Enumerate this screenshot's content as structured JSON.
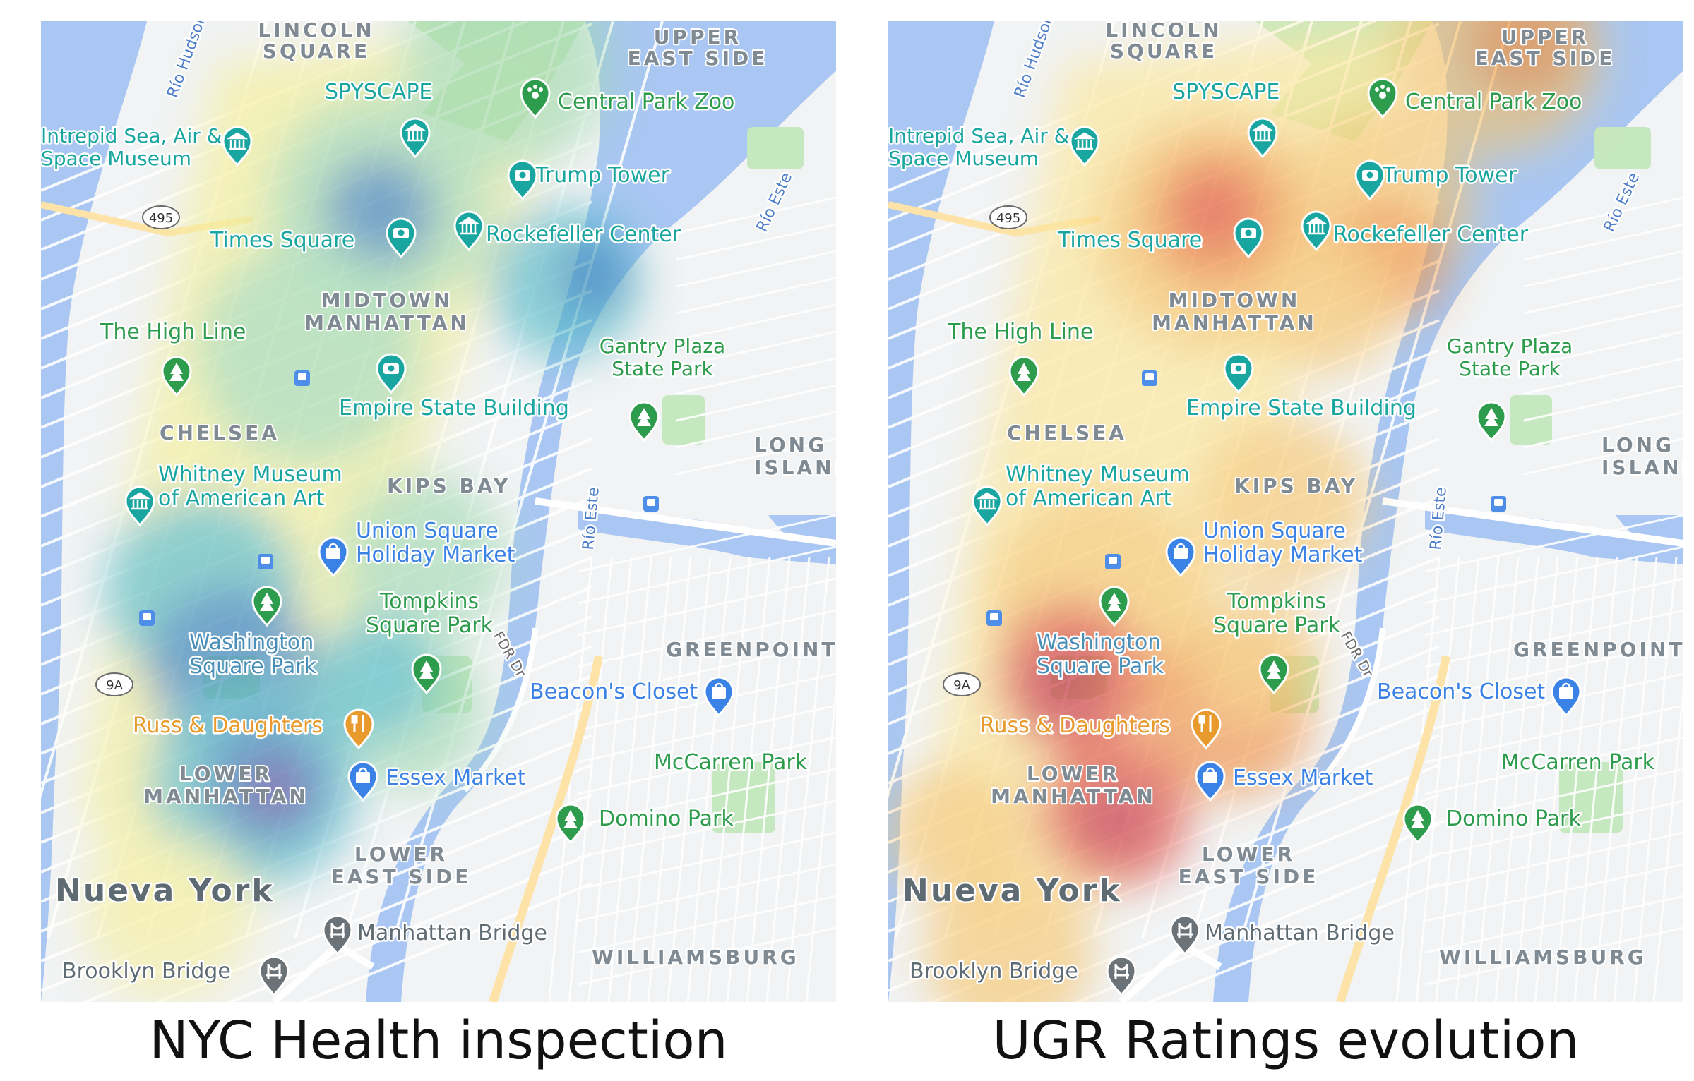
{
  "colors": {
    "water": "#a9c7f2",
    "land": "#f1f3f4",
    "park": "#c6e8c0",
    "street": "#ffffff",
    "highway": "#fde3a7",
    "poi_teal": "#1aa6a0",
    "poi_green": "#2e9c4d",
    "poi_blue": "#3b82e6",
    "poi_orange": "#e89a2c",
    "district": "#7f8a93",
    "cool_heat": [
      "#f4efa0",
      "#9fd8b0",
      "#4db7c4",
      "#3a7ab8",
      "#6a3d9a"
    ],
    "warm_heat": [
      "#fbe7a0",
      "#f7c46a",
      "#f08c3c",
      "#e04a3a",
      "#c0304a"
    ]
  },
  "maps": [
    {
      "id": "health",
      "caption": "NYC Health inspection",
      "heat_scheme": "cool"
    },
    {
      "id": "ugr",
      "caption": "UGR Ratings evolution",
      "heat_scheme": "warm"
    }
  ],
  "map_labels": {
    "lincoln_square": [
      "LINCOLN",
      "SQUARE"
    ],
    "upper_east_side": [
      "UPPER",
      "EAST SIDE"
    ],
    "spyscape": "SPYSCAPE",
    "central_park_zoo": "Central Park Zoo",
    "intrepid": [
      "Intrepid Sea, Air &",
      "Space Museum"
    ],
    "trump_tower": "Trump Tower",
    "times_square": "Times Square",
    "rockefeller_center": "Rockefeller Center",
    "midtown_manhattan": [
      "MIDTOWN",
      "MANHATTAN"
    ],
    "high_line": "The High Line",
    "gantry_plaza": [
      "Gantry Plaza",
      "State Park"
    ],
    "chelsea": "CHELSEA",
    "empire_state": "Empire State Building",
    "long_island_city": [
      "LONG",
      "ISLAND CITY"
    ],
    "whitney": [
      "Whitney Museum",
      "of American Art"
    ],
    "kips_bay": "KIPS BAY",
    "union_square": [
      "Union Square",
      "Holiday Market"
    ],
    "tompkins": [
      "Tompkins",
      "Square Park"
    ],
    "greenpoint": "GREENPOINT",
    "washington_square": [
      "Washington",
      "Square Park"
    ],
    "beacons_closet": "Beacon's Closet",
    "russ_daughters": "Russ & Daughters",
    "mccarren_park": "McCarren Park",
    "lower_manhattan": [
      "LOWER",
      "MANHATTAN"
    ],
    "essex_market": "Essex Market",
    "domino_park": "Domino Park",
    "lower_east_side": [
      "LOWER",
      "EAST SIDE"
    ],
    "nueva_york": "Nueva York",
    "manhattan_bridge": "Manhattan Bridge",
    "brooklyn_bridge": "Brooklyn Bridge",
    "williamsburg": "WILLIAMSBURG",
    "rio_hudson": "Río Hudson",
    "rio_este": "Río Este",
    "fdr_dr": "FDR Dr",
    "shield_495": "495",
    "shield_9a": "9A"
  }
}
